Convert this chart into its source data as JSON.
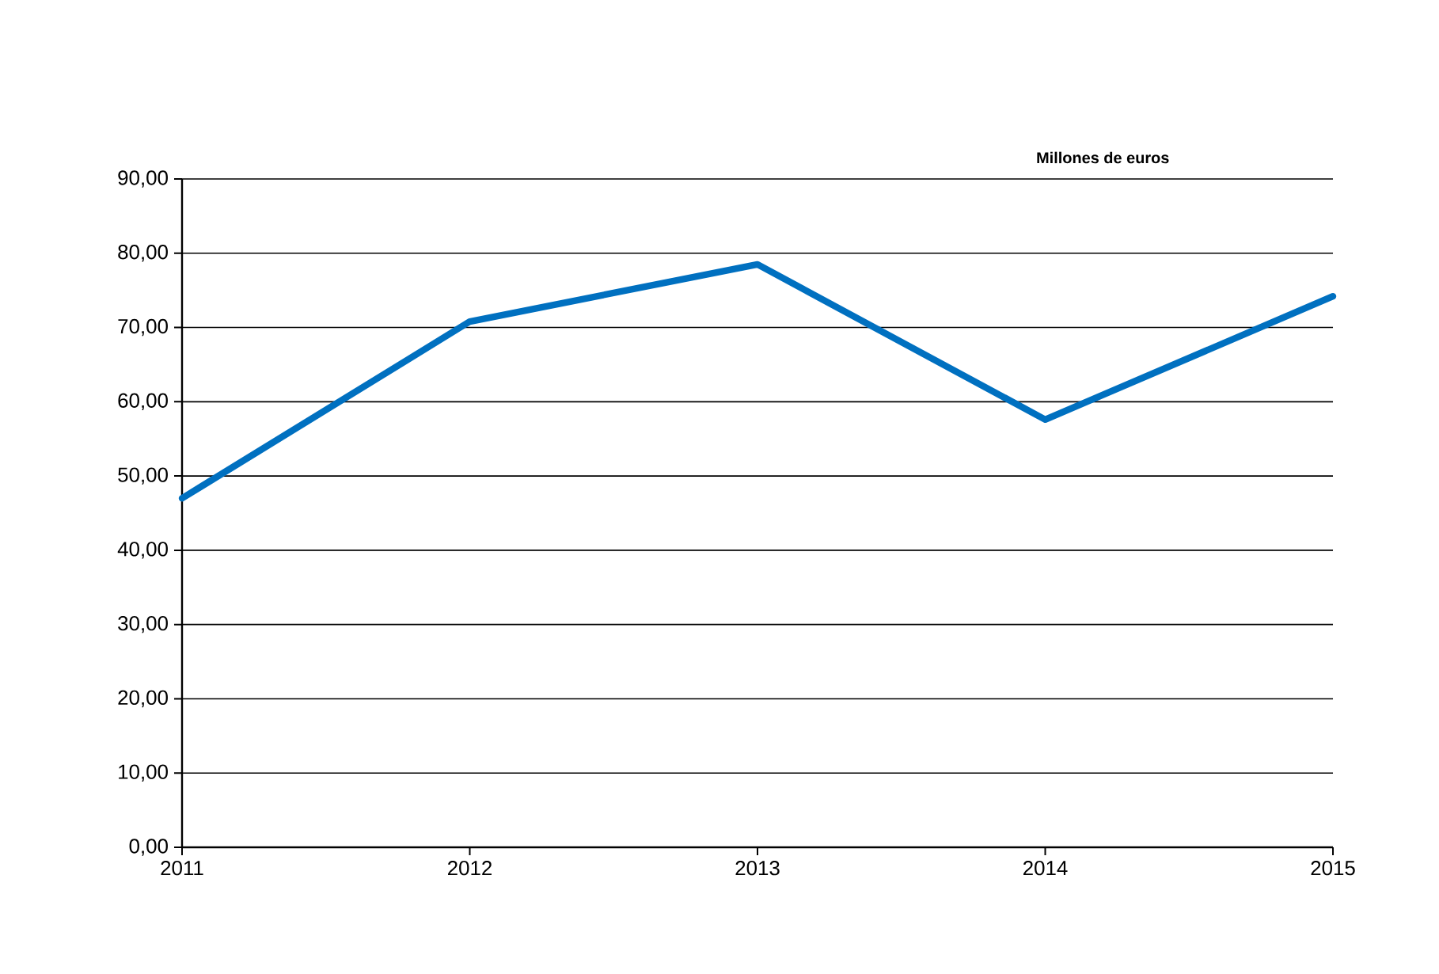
{
  "chart_data": {
    "type": "line",
    "ylabel": "Millones de euros",
    "x": [
      2011,
      2012,
      2013,
      2014,
      2015
    ],
    "series": [
      {
        "color": "#0070c0",
        "values": [
          47,
          70.8,
          78.5,
          57.6,
          74.2
        ]
      }
    ],
    "xlim": [
      2011,
      2015
    ],
    "xticks": [
      2011,
      2012,
      2013,
      2014,
      2015
    ],
    "ylim": [
      0,
      90
    ],
    "yticks": [
      {
        "value": 0,
        "label": "0,00"
      },
      {
        "value": 10,
        "label": "10,00"
      },
      {
        "value": 20,
        "label": "20,00"
      },
      {
        "value": 30,
        "label": "30,00"
      },
      {
        "value": 40,
        "label": "40,00"
      },
      {
        "value": 50,
        "label": "50,00"
      },
      {
        "value": 60,
        "label": "60,00"
      },
      {
        "value": 70,
        "label": "70,00"
      },
      {
        "value": 80,
        "label": "80,00"
      },
      {
        "value": 90,
        "label": "90,00"
      }
    ],
    "grid": "y",
    "marker": "none",
    "line_style": "solid"
  }
}
